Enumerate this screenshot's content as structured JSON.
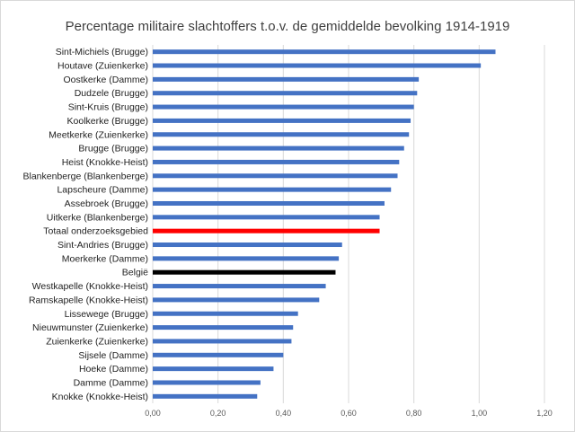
{
  "chart_data": {
    "type": "bar",
    "orientation": "horizontal",
    "title": "Percentage militaire slachtoffers t.o.v. de gemiddelde bevolking 1914-1919",
    "xlabel": "",
    "ylabel": "",
    "xlim": [
      0,
      1.2
    ],
    "xticks": [
      "0,00",
      "0,20",
      "0,40",
      "0,60",
      "0,80",
      "1,00",
      "1,20"
    ],
    "grid": true,
    "legend": "none",
    "colors": {
      "default": "#4472c4",
      "highlight_red": "#ff0000",
      "highlight_black": "#000000"
    },
    "categories": [
      "Sint-Michiels (Brugge)",
      "Houtave (Zuienkerke)",
      "Oostkerke (Damme)",
      "Dudzele (Brugge)",
      "Sint-Kruis (Brugge)",
      "Koolkerke (Brugge)",
      "Meetkerke (Zuienkerke)",
      "Brugge (Brugge)",
      "Heist (Knokke-Heist)",
      "Blankenberge (Blankenberge)",
      "Lapscheure (Damme)",
      "Assebroek (Brugge)",
      "Uitkerke (Blankenberge)",
      "Totaal onderzoeksgebied",
      "Sint-Andries (Brugge)",
      "Moerkerke (Damme)",
      "België",
      "Westkapelle (Knokke-Heist)",
      "Ramskapelle (Knokke-Heist)",
      "Lissewege (Brugge)",
      "Nieuwmunster (Zuienkerke)",
      "Zuienkerke (Zuienkerke)",
      "Sijsele (Damme)",
      "Hoeke (Damme)",
      "Damme (Damme)",
      "Knokke (Knokke-Heist)"
    ],
    "values": [
      1.05,
      1.005,
      0.815,
      0.81,
      0.8,
      0.79,
      0.785,
      0.77,
      0.755,
      0.75,
      0.73,
      0.71,
      0.695,
      0.695,
      0.58,
      0.57,
      0.56,
      0.53,
      0.51,
      0.445,
      0.43,
      0.425,
      0.4,
      0.37,
      0.33,
      0.32
    ],
    "bar_colors": [
      "default",
      "default",
      "default",
      "default",
      "default",
      "default",
      "default",
      "default",
      "default",
      "default",
      "default",
      "default",
      "default",
      "highlight_red",
      "default",
      "default",
      "highlight_black",
      "default",
      "default",
      "default",
      "default",
      "default",
      "default",
      "default",
      "default",
      "default"
    ]
  }
}
